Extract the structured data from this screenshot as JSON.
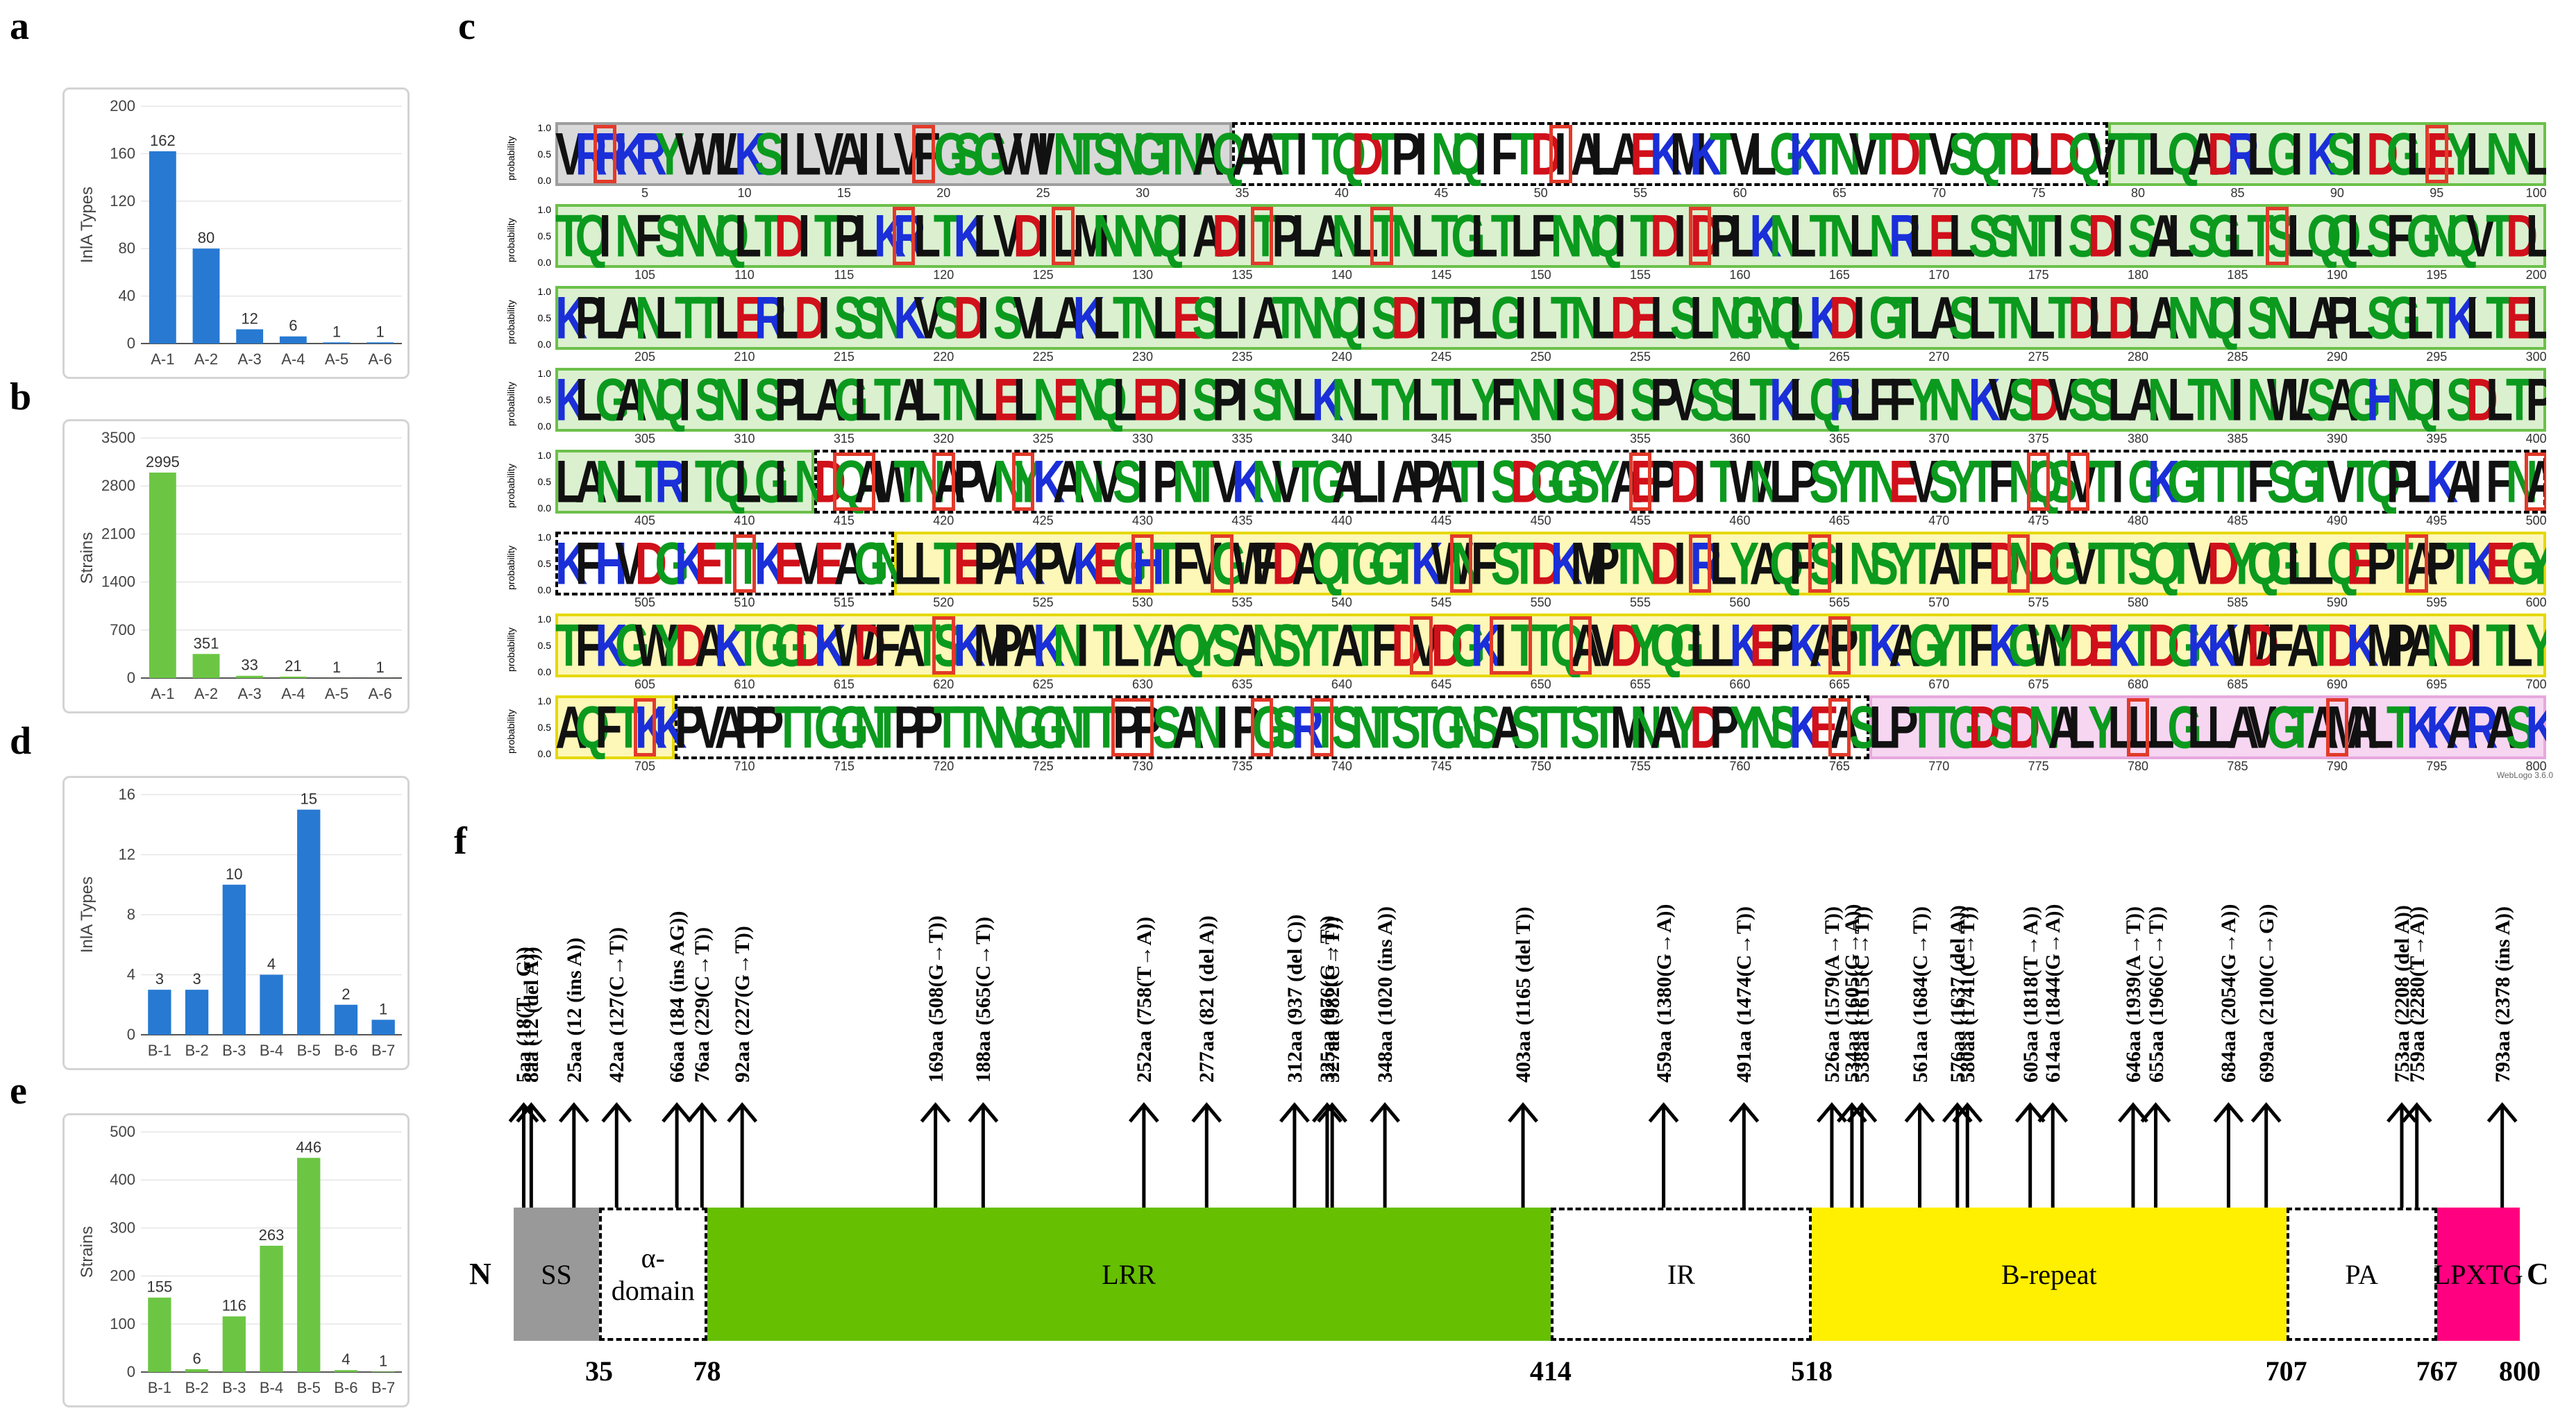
{
  "panels": {
    "a": "a",
    "b": "b",
    "c": "c",
    "d": "d",
    "e": "e",
    "f": "f"
  },
  "chart_data": [
    {
      "panel": "a",
      "type": "bar",
      "categories": [
        "A-1",
        "A-2",
        "A-3",
        "A-4",
        "A-5",
        "A-6"
      ],
      "values": [
        162,
        80,
        12,
        6,
        1,
        1
      ],
      "ylabel": "InlA Types",
      "ylim": [
        0,
        200
      ],
      "yticks": [
        0,
        40,
        80,
        120,
        160,
        200
      ],
      "color": "#2779d2",
      "data_labels": true
    },
    {
      "panel": "b",
      "type": "bar",
      "categories": [
        "A-1",
        "A-2",
        "A-3",
        "A-4",
        "A-5",
        "A-6"
      ],
      "values": [
        2995,
        351,
        33,
        21,
        1,
        1
      ],
      "ylabel": "Strains",
      "ylim": [
        0,
        3500
      ],
      "yticks": [
        0,
        700,
        1400,
        2100,
        2800,
        3500
      ],
      "color": "#6cc644",
      "data_labels": true
    },
    {
      "panel": "d",
      "type": "bar",
      "categories": [
        "B-1",
        "B-2",
        "B-3",
        "B-4",
        "B-5",
        "B-6",
        "B-7"
      ],
      "values": [
        3,
        3,
        10,
        4,
        15,
        2,
        1
      ],
      "ylabel": "InlA Types",
      "ylim": [
        0,
        16
      ],
      "yticks": [
        0,
        4,
        8,
        12,
        16
      ],
      "color": "#2779d2",
      "data_labels": true
    },
    {
      "panel": "e",
      "type": "bar",
      "categories": [
        "B-1",
        "B-2",
        "B-3",
        "B-4",
        "B-5",
        "B-6",
        "B-7"
      ],
      "values": [
        155,
        6,
        116,
        263,
        446,
        4,
        1
      ],
      "ylabel": "Strains",
      "ylim": [
        0,
        500
      ],
      "yticks": [
        0,
        100,
        200,
        300,
        400,
        500
      ],
      "color": "#6cc644",
      "data_labels": true
    }
  ],
  "sequence_logo": {
    "ylabel": "probability",
    "yticks": [
      "0.0",
      "0.5",
      "1.0"
    ],
    "footer": "WebLogo 3.6.0",
    "rows": [
      {
        "start": 1,
        "seq": "VRRKRYVWLKSILVAILVFGSGVWINTSNGTNAQAATITQDTPINQIFTDIALAEKMKTVLGKTNVTDTVSQTDLDQVTTLQADRLGIKSIDGLEYLNNL",
        "ticks": [
          "5",
          "10",
          "15",
          "20",
          "25",
          "30",
          "35",
          "40",
          "45",
          "50",
          "55",
          "60",
          "65",
          "70",
          "75",
          "80",
          "85",
          "90",
          "95",
          "100"
        ]
      },
      {
        "start": 101,
        "seq": "TQINFSNNQLTDITPLKRLTKLVDILMNNNQIADITPLANLTNLTGLTLFNNQITDIDPLKNLTNLNRLELSSNTISDISALSGLTSLQQLSFGNQVTDL",
        "ticks": [
          "105",
          "110",
          "115",
          "120",
          "125",
          "130",
          "135",
          "140",
          "145",
          "150",
          "155",
          "160",
          "165",
          "170",
          "175",
          "180",
          "185",
          "190",
          "195",
          "200"
        ]
      },
      {
        "start": 201,
        "seq": "KPLANLTTLERLDISSNKVSDISVLAKLTNLESLIATNNQISDITPLGILTNLDELSLNGNQLKDIGTLASLTNLTDLDLANNQISNLAPLSGLTKLTEL",
        "ticks": [
          "205",
          "210",
          "215",
          "220",
          "225",
          "230",
          "235",
          "240",
          "245",
          "250",
          "255",
          "260",
          "265",
          "270",
          "275",
          "280",
          "285",
          "290",
          "295",
          "300"
        ]
      },
      {
        "start": 301,
        "seq": "KLGANQISNISPLAGLTALTNLELNENQLEDISPISNLKNLTYLTLYFNNISDISPVSSLTKLQRLFFYNNKVSDVSSLANLTNINWLSAGHNQISDLTP",
        "ticks": [
          "305",
          "310",
          "315",
          "320",
          "325",
          "330",
          "335",
          "340",
          "345",
          "350",
          "355",
          "360",
          "365",
          "370",
          "375",
          "380",
          "385",
          "390",
          "395",
          "400"
        ]
      },
      {
        "start": 401,
        "seq": "LANLTRITQLGLNDQAWTNAPVNYKANVSIPNTVKNVTGALIAPATISDGGSYAEPDITWNLPSYTNEVSYTFNQSVTIGKGTTTFSGTVTQPLKAIFNA",
        "ticks": [
          "405",
          "410",
          "415",
          "420",
          "425",
          "430",
          "435",
          "440",
          "445",
          "450",
          "455",
          "460",
          "465",
          "470",
          "475",
          "480",
          "485",
          "490",
          "495",
          "500"
        ]
      },
      {
        "start": 501,
        "seq": "KFHVDGKETTKEVEAGNLLTEPAKPVKEGHTFVGWFDAQTGGTKWNFSTDKMPTNDIRLYAQFSINSYTATFDNDGVTTSQTVDYQGLLQEPTAPTKEGY",
        "ticks": [
          "505",
          "510",
          "515",
          "520",
          "525",
          "530",
          "535",
          "540",
          "545",
          "550",
          "555",
          "560",
          "565",
          "570",
          "575",
          "580",
          "585",
          "590",
          "595",
          "600"
        ]
      },
      {
        "start": 601,
        "seq": "TFKGWYDAKTGGDKWDFATSKMPAKNITLYAQYSANSYTATFDVDGKITTQAVDYQGLLKEPKAPTKAGYTFKGWYDEKTDGKKWDFATDKMPANDITLY",
        "ticks": [
          "605",
          "610",
          "615",
          "620",
          "625",
          "630",
          "635",
          "640",
          "645",
          "650",
          "655",
          "660",
          "665",
          "670",
          "675",
          "680",
          "685",
          "690",
          "695",
          "700"
        ]
      },
      {
        "start": 701,
        "seq": "AQFTKKPVAPPTTGGNTPPTTNNGGNTTPPSANIPGSRTSNTSTGNSASTTSTMNAYDPYNSKEASLPTTGDSDNALYLLLGLLAVGTAMALTKKARASK",
        "ticks": [
          "705",
          "710",
          "715",
          "720",
          "725",
          "730",
          "735",
          "740",
          "745",
          "750",
          "755",
          "760",
          "765",
          "770",
          "775",
          "780",
          "785",
          "790",
          "795",
          "800"
        ]
      }
    ]
  },
  "domain_map": {
    "n_label": "N",
    "c_label": "C",
    "domains": [
      {
        "name": "SS",
        "start": 1,
        "end": 35,
        "color": "#999999",
        "style": "solid"
      },
      {
        "name": "α-domain",
        "start": 35,
        "end": 78,
        "color": "#ffffff",
        "style": "dashed"
      },
      {
        "name": "LRR",
        "start": 78,
        "end": 414,
        "color": "#66bf00",
        "style": "solid"
      },
      {
        "name": "IR",
        "start": 414,
        "end": 518,
        "color": "#ffffff",
        "style": "dashed"
      },
      {
        "name": "B-repeat",
        "start": 518,
        "end": 707,
        "color": "#ffef00",
        "style": "solid"
      },
      {
        "name": "PA",
        "start": 707,
        "end": 767,
        "color": "#ffffff",
        "style": "dashed"
      },
      {
        "name": "LPXTG",
        "start": 767,
        "end": 800,
        "color": "#ff0080",
        "style": "solid"
      }
    ],
    "positions": [
      "35",
      "78",
      "414",
      "518",
      "707",
      "767",
      "800"
    ],
    "mutations": [
      "5aa (18(T→G))",
      "8aa (12 (del A))",
      "25aa (12 (ins A))",
      "42aa (127(C→T))",
      "66aa (184 (ins AG))",
      "76aa (229(C→T))",
      "92aa (227(G→T))",
      "169aa (508(G→T))",
      "188aa (565(C→T))",
      "252aa (758(T→A))",
      "277aa (821 (del A))",
      "312aa (937 (del C))",
      "325aa (976(G→T))",
      "327aa (982(C→T))",
      "348aa (1020 (ins A))",
      "403aa (1165 (del T))",
      "459aa (1380(G→A))",
      "491aa (1474(C→T))",
      "526aa (1579(A→T))",
      "534aa (1605(G→A))",
      "538aa (1615(C→T))",
      "561aa (1684(C→T))",
      "576aa (1637 (del A))",
      "580aa (1741(C→T))",
      "605aa (1818(T→A))",
      "614aa (1844(G→A))",
      "646aa (1939(A→T))",
      "655aa (1966(C→T))",
      "684aa (2054(G→A))",
      "699aa (2100(C→G))",
      "753aa (2208 (del A))",
      "759aa (2280(T→A))",
      "793aa (2378 (ins A))"
    ]
  }
}
